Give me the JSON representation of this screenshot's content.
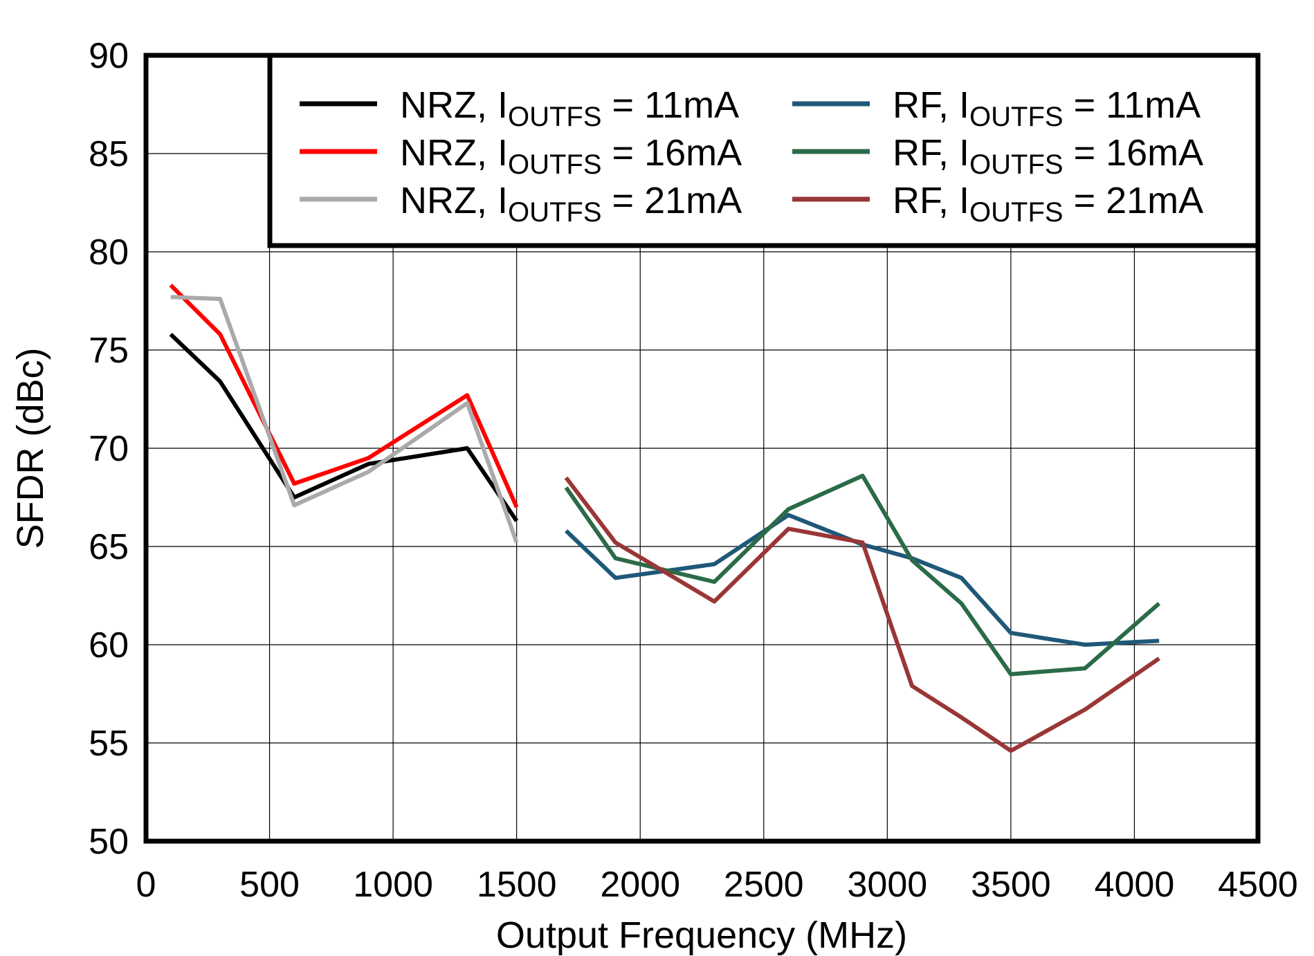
{
  "chart_data": {
    "type": "line",
    "xlabel": "Output Frequency (MHz)",
    "ylabel": "SFDR (dBc)",
    "xlim": [
      0,
      4500
    ],
    "ylim": [
      50,
      90
    ],
    "xticks": [
      0,
      500,
      1000,
      1500,
      2000,
      2500,
      3000,
      3500,
      4000,
      4500
    ],
    "yticks": [
      50,
      55,
      60,
      65,
      70,
      75,
      80,
      85,
      90
    ],
    "grid": true,
    "legend_position": "top-right",
    "series": [
      {
        "name": "NRZ, IOUTFS = 11mA",
        "label_main": "NRZ, I",
        "label_sub": "OUTFS",
        "label_tail": " = 11mA",
        "color": "#000000",
        "x": [
          100,
          300,
          600,
          900,
          1300,
          1500
        ],
        "y": [
          75.8,
          73.4,
          67.5,
          69.2,
          70.0,
          66.3
        ]
      },
      {
        "name": "NRZ, IOUTFS = 16mA",
        "label_main": "NRZ, I",
        "label_sub": "OUTFS",
        "label_tail": " = 16mA",
        "color": "#ff0000",
        "x": [
          100,
          300,
          600,
          900,
          1300,
          1500
        ],
        "y": [
          78.3,
          75.8,
          68.2,
          69.5,
          72.7,
          67.0
        ]
      },
      {
        "name": "NRZ, IOUTFS = 21mA",
        "label_main": "NRZ, I",
        "label_sub": "OUTFS",
        "label_tail": " = 21mA",
        "color": "#aaaaaa",
        "x": [
          100,
          300,
          600,
          900,
          1300,
          1500
        ],
        "y": [
          77.7,
          77.6,
          67.1,
          68.8,
          72.3,
          65.2
        ]
      },
      {
        "name": "RF, IOUTFS = 11mA",
        "label_main": "RF, I",
        "label_sub": "OUTFS",
        "label_tail": " = 11mA",
        "color": "#1f5878",
        "x": [
          1700,
          1900,
          2300,
          2600,
          2900,
          3100,
          3300,
          3500,
          3800,
          4100
        ],
        "y": [
          65.8,
          63.4,
          64.1,
          66.6,
          65.1,
          64.4,
          63.4,
          60.6,
          60.0,
          60.2
        ]
      },
      {
        "name": "RF, IOUTFS = 16mA",
        "label_main": "RF, I",
        "label_sub": "OUTFS",
        "label_tail": " = 16mA",
        "color": "#2b6b47",
        "x": [
          1700,
          1900,
          2300,
          2600,
          2900,
          3100,
          3300,
          3500,
          3800,
          4100
        ],
        "y": [
          68.0,
          64.4,
          63.2,
          66.9,
          68.6,
          64.3,
          62.1,
          58.5,
          58.8,
          62.1
        ]
      },
      {
        "name": "RF, IOUTFS = 21mA",
        "label_main": "RF, I",
        "label_sub": "OUTFS",
        "label_tail": " = 21mA",
        "color": "#9a3636",
        "x": [
          1700,
          1900,
          2300,
          2600,
          2900,
          3100,
          3300,
          3500,
          3800,
          4100
        ],
        "y": [
          68.5,
          65.2,
          62.2,
          65.9,
          65.2,
          57.9,
          56.3,
          54.6,
          56.7,
          59.3
        ]
      }
    ]
  }
}
